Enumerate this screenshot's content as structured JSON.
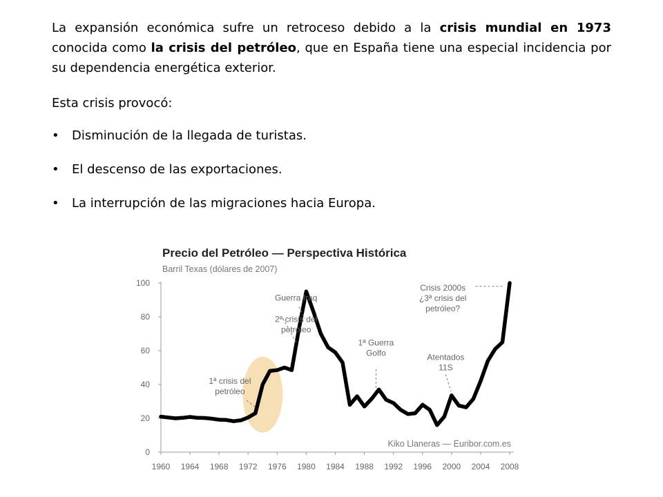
{
  "paragraph": {
    "p1": "La expansión económica sufre un retroceso debido a la ",
    "b1": "crisis mundial en 1973",
    "p2": " conocida como ",
    "b2": "la crisis del petróleo",
    "p3": ", que en España tiene una especial incidencia por su dependencia energética exterior."
  },
  "lead": "Esta crisis provocó:",
  "bullet_glyph": "•",
  "bullets": [
    "Disminución de la llegada de turistas.",
    "El descenso de las exportaciones.",
    "La interrupción de las migraciones hacia Europa."
  ],
  "chart_data": {
    "type": "line",
    "title": "Precio del Petróleo — Perspectiva Histórica",
    "subtitle": "Barril Texas (dólares de 2007)",
    "credit": "Kiko Llaneras — Euribor.com.es",
    "xlim": [
      1960,
      2008
    ],
    "ylim": [
      0,
      100
    ],
    "x_ticks": [
      1960,
      1964,
      1968,
      1972,
      1976,
      1980,
      1984,
      1988,
      1992,
      1996,
      2000,
      2004,
      2008
    ],
    "y_ticks": [
      0,
      20,
      40,
      60,
      80,
      100
    ],
    "grid": false,
    "line_color": "#000000",
    "highlight_color": "#f6dfb4",
    "highlight": {
      "x": 1974,
      "y": 34
    },
    "series": [
      {
        "x": [
          1960,
          1961,
          1962,
          1963,
          1964,
          1965,
          1966,
          1967,
          1968,
          1969,
          1970,
          1971,
          1972,
          1973,
          1974,
          1975,
          1976,
          1977,
          1978,
          1979,
          1980,
          1981,
          1982,
          1983,
          1984,
          1985,
          1986,
          1987,
          1988,
          1989,
          1990,
          1991,
          1992,
          1993,
          1994,
          1995,
          1996,
          1997,
          1998,
          1999,
          2000,
          2001,
          2002,
          2003,
          2004,
          2005,
          2006,
          2007,
          2008
        ],
        "y": [
          21,
          20.5,
          20,
          20.3,
          20.8,
          20.3,
          20.2,
          19.8,
          19.2,
          19,
          18.3,
          18.8,
          20.5,
          23,
          40,
          48,
          48.5,
          50,
          48.5,
          73,
          95,
          83,
          70,
          62,
          59,
          53,
          28,
          33,
          27,
          31.5,
          37,
          31,
          29,
          25,
          22.5,
          23,
          28,
          25,
          16,
          21,
          33.5,
          27.5,
          26.5,
          31.5,
          42,
          54,
          61,
          65,
          100
        ]
      }
    ],
    "annotations": [
      {
        "lines": [
          "Guerra Iraq"
        ],
        "x": 1978.6,
        "y": 89.5,
        "pointer": [
          [
            1979,
            86
          ],
          [
            1979.8,
            79
          ]
        ]
      },
      {
        "lines": [
          "2ª crisis del",
          "petróleo"
        ],
        "x": 1978.6,
        "y": 77,
        "pointer": [
          [
            1976.8,
            79
          ],
          [
            1978.6,
            65
          ]
        ]
      },
      {
        "lines": [
          "1ª Guerra",
          "Golfo"
        ],
        "x": 1989.6,
        "y": 63,
        "pointer": [
          [
            1989.6,
            49
          ],
          [
            1989.6,
            38
          ]
        ]
      },
      {
        "lines": [
          "Atentados",
          "11S"
        ],
        "x": 1999.2,
        "y": 54.5,
        "pointer": [
          [
            1999.2,
            46
          ],
          [
            1999.9,
            36
          ]
        ]
      },
      {
        "lines": [
          "Crisis 2000s",
          "¿3ª crisis del",
          "petróleo?"
        ],
        "x": 1998.8,
        "y": 95.5,
        "pointer": [
          [
            2003.3,
            98
          ],
          [
            2007,
            98
          ]
        ]
      },
      {
        "lines": [
          "1ª crisis del",
          "petróleo"
        ],
        "x": 1969.5,
        "y": 40.5,
        "pointer": [
          [
            1971.8,
            30.5
          ],
          [
            1973.2,
            26
          ]
        ]
      }
    ]
  }
}
